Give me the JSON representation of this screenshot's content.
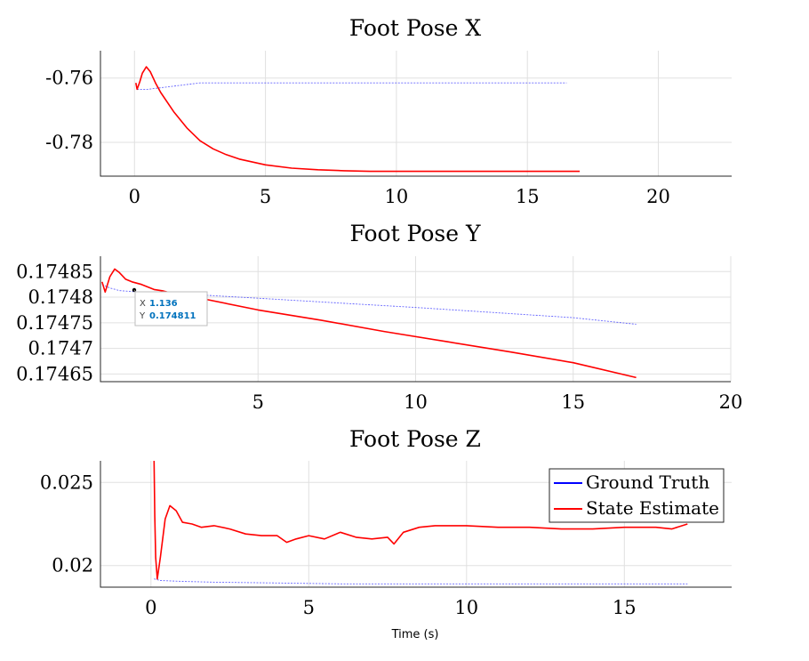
{
  "chart_data": [
    {
      "type": "line",
      "title": "Foot Pose X",
      "xlabel": "",
      "ylabel": "",
      "xlim": [
        -1.3,
        22.8
      ],
      "ylim": [
        -0.7905,
        -0.7515
      ],
      "xticks": [
        0,
        5,
        10,
        15,
        20
      ],
      "yticks": [
        -0.78,
        -0.76
      ],
      "xtick_labels": [
        "0",
        "5",
        "10",
        "15",
        "20"
      ],
      "ytick_labels": [
        "-0.78",
        "-0.76"
      ],
      "grid": true,
      "series": [
        {
          "name": "Ground Truth",
          "color": "#0000ff",
          "x": [
            0.1,
            0.5,
            1,
            1.5,
            2,
            2.5,
            3,
            4.5,
            7.5,
            9.5,
            11.5,
            13.5,
            15.5,
            16.5
          ],
          "y": [
            -0.7635,
            -0.7635,
            -0.763,
            -0.7625,
            -0.762,
            -0.7615,
            -0.7615,
            -0.7615,
            -0.7615,
            -0.7615,
            -0.7615,
            -0.7615,
            -0.7615,
            -0.7615
          ]
        },
        {
          "name": "State Estimate",
          "color": "#ff0000",
          "x": [
            0.05,
            0.1,
            0.2,
            0.3,
            0.45,
            0.6,
            0.8,
            1,
            1.5,
            2,
            2.5,
            3,
            3.5,
            4,
            5,
            6,
            7,
            8,
            9,
            10,
            12,
            14,
            17
          ],
          "y": [
            -0.7615,
            -0.7635,
            -0.7612,
            -0.7585,
            -0.7565,
            -0.758,
            -0.7615,
            -0.7645,
            -0.7705,
            -0.7755,
            -0.7795,
            -0.782,
            -0.7838,
            -0.7852,
            -0.787,
            -0.788,
            -0.7885,
            -0.7888,
            -0.789,
            -0.789,
            -0.789,
            -0.789,
            -0.789
          ]
        }
      ]
    },
    {
      "type": "line",
      "title": "Foot Pose Y",
      "xlabel": "",
      "ylabel": "",
      "xlim": [
        0,
        20
      ],
      "ylim": [
        0.174635,
        0.17488
      ],
      "xticks": [
        5,
        10,
        15,
        20
      ],
      "yticks": [
        0.17465,
        0.1747,
        0.17475,
        0.1748,
        0.17485
      ],
      "xtick_labels": [
        "5",
        "10",
        "15",
        "20"
      ],
      "ytick_labels": [
        "0.17465",
        "0.1747",
        "0.17475",
        "0.1748",
        "0.17485"
      ],
      "grid": true,
      "datatip": {
        "x_label": "X",
        "y_label": "Y",
        "x_value": "1.136",
        "y_value": "0.174811",
        "x": 1.136,
        "y": 0.174811,
        "value_color": "#0072bd"
      },
      "series": [
        {
          "name": "Ground Truth",
          "color": "#0000ff",
          "x": [
            0.05,
            0.3,
            0.6,
            1.0,
            2.0,
            3.0,
            5.0,
            8.0,
            10.0,
            13.0,
            15.0,
            17.0
          ],
          "y": [
            0.174825,
            0.174818,
            0.174813,
            0.174811,
            0.174808,
            0.174805,
            0.174798,
            0.174787,
            0.17478,
            0.174768,
            0.17476,
            0.174747
          ]
        },
        {
          "name": "State Estimate",
          "color": "#ff0000",
          "x": [
            0.05,
            0.15,
            0.3,
            0.45,
            0.6,
            0.8,
            1.0,
            1.3,
            1.7,
            2.0,
            2.5,
            3.0,
            5.0,
            7.0,
            9.0,
            11.0,
            13.0,
            15.0,
            17.0
          ],
          "y": [
            0.17483,
            0.17481,
            0.17484,
            0.174855,
            0.174848,
            0.174835,
            0.17483,
            0.174825,
            0.174815,
            0.174812,
            0.174804,
            0.1748,
            0.174775,
            0.174755,
            0.174733,
            0.174713,
            0.174693,
            0.174672,
            0.174643
          ]
        }
      ]
    },
    {
      "type": "line",
      "title": "Foot Pose Z",
      "xlabel": "Time (s)",
      "ylabel": "",
      "xlim": [
        -1.6,
        18.4
      ],
      "ylim": [
        0.0187,
        0.0263
      ],
      "xticks": [
        0,
        5,
        10,
        15
      ],
      "yticks": [
        0.02,
        0.025
      ],
      "xtick_labels": [
        "0",
        "5",
        "10",
        "15"
      ],
      "ytick_labels": [
        "0.02",
        "0.025"
      ],
      "grid": true,
      "legend": {
        "location": "top-right",
        "entries": [
          "Ground Truth",
          "State Estimate"
        ]
      },
      "series": [
        {
          "name": "Ground Truth",
          "color": "#0000ff",
          "x": [
            0.1,
            0.3,
            1,
            2,
            4,
            6,
            8,
            10,
            12,
            14,
            16,
            17
          ],
          "y": [
            0.0192,
            0.0191,
            0.01905,
            0.019,
            0.01895,
            0.0189,
            0.0189,
            0.0189,
            0.0189,
            0.0189,
            0.0189,
            0.0189
          ]
        },
        {
          "name": "State Estimate",
          "color": "#ff0000",
          "x": [
            0.1,
            0.12,
            0.15,
            0.2,
            0.3,
            0.45,
            0.6,
            0.8,
            1.0,
            1.3,
            1.6,
            2.0,
            2.5,
            3.0,
            3.5,
            4.0,
            4.3,
            4.6,
            5.0,
            5.5,
            6.0,
            6.5,
            7.0,
            7.5,
            7.7,
            8.0,
            8.5,
            9.0,
            10,
            11,
            12,
            13,
            14,
            15,
            16,
            16.5,
            17
          ],
          "y": [
            0.0263,
            0.023,
            0.0205,
            0.0192,
            0.0205,
            0.0228,
            0.0236,
            0.0233,
            0.0226,
            0.0225,
            0.0223,
            0.0224,
            0.0222,
            0.0219,
            0.0218,
            0.0218,
            0.0214,
            0.0216,
            0.0218,
            0.0216,
            0.022,
            0.0217,
            0.0216,
            0.0217,
            0.0213,
            0.022,
            0.0223,
            0.0224,
            0.0224,
            0.0223,
            0.0223,
            0.0222,
            0.0222,
            0.0223,
            0.0223,
            0.0222,
            0.0225
          ]
        }
      ]
    }
  ]
}
